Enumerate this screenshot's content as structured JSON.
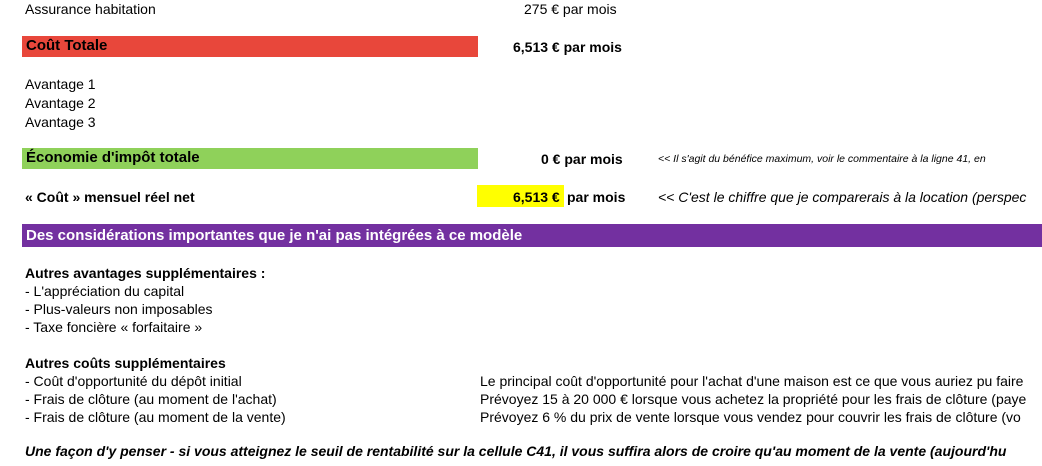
{
  "rows": {
    "assurance_label": "Assurance habitation",
    "assurance_value": "275 € par mois",
    "cout_totale_label": "Coût Totale",
    "cout_totale_value": "6,513 € par mois",
    "avantages": [
      "Avantage 1",
      "Avantage 2",
      "Avantage 3"
    ],
    "economie_label": "Économie d'impôt totale",
    "economie_value": "0 € par mois",
    "economie_note": "<< Il s'agit du bénéfice maximum, voir le commentaire à la ligne 41, en",
    "cout_reel_label": "« Coût » mensuel réel net",
    "cout_reel_amount": "6,513 €",
    "cout_reel_suffix": "par mois",
    "cout_reel_note": "<< C'est le chiffre que je comparerais à la location (perspec"
  },
  "section": {
    "title": "Des considérations importantes que je n'ai pas intégrées à ce modèle",
    "avantages_title": "Autres avantages supplémentaires :",
    "avantages_items": [
      "- L'appréciation du capital",
      "- Plus-valeurs non imposables",
      "- Taxe foncière « forfaitaire »"
    ],
    "couts_title": "Autres coûts supplémentaires",
    "couts_items": [
      "- Coût d'opportunité du dépôt initial",
      "- Frais de clôture (au moment de l'achat)",
      "- Frais de clôture (au moment de la vente)"
    ],
    "couts_notes": [
      "Le principal coût d'opportunité pour l'achat d'une maison est ce que vous auriez pu faire",
      "Prévoyez 15 à 20 000 € lorsque vous achetez la propriété pour les frais de clôture (paye",
      "Prévoyez 6 % du prix de vente lorsque vous vendez pour couvrir les frais de clôture (vo"
    ],
    "closing_line": "Une façon d'y penser - si vous atteignez le seuil de rentabilité sur la cellule C41, il vous suffira alors de croire qu'au moment de la vente (aujourd'hu"
  },
  "colors": {
    "red_bar": "#e8473b",
    "green_bar": "#8fd15a",
    "purple_bar": "#7330a0",
    "yellow_highlight": "#ffff00"
  }
}
